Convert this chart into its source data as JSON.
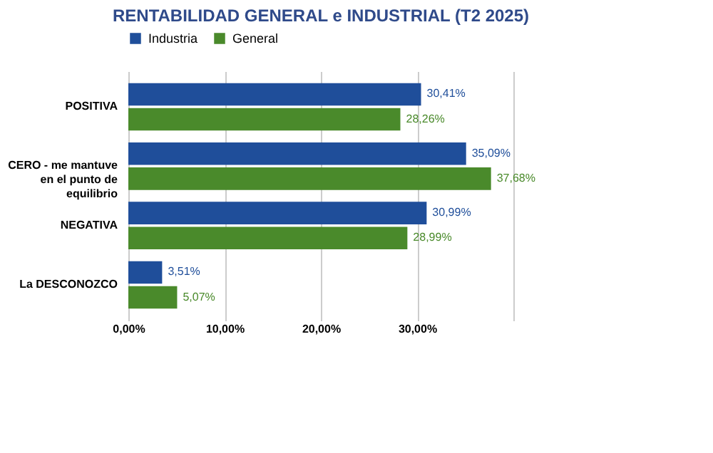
{
  "chart_data": {
    "type": "bar",
    "orientation": "horizontal",
    "title": "RENTABILIDAD GENERAL e INDUSTRIAL (T2 2025)",
    "categories": [
      "POSITIVA",
      "CERO - me mantuve en el punto de equilibrio",
      "NEGATIVA",
      "La DESCONOZCO"
    ],
    "series": [
      {
        "name": "Industria",
        "color": "#1f4e9a",
        "values": [
          30.41,
          35.09,
          30.99,
          3.51
        ],
        "value_labels": [
          "30,41%",
          "35,09%",
          "30,99%",
          "3,51%"
        ]
      },
      {
        "name": "General",
        "color": "#4a8a2b",
        "values": [
          28.26,
          37.68,
          28.99,
          5.07
        ],
        "value_labels": [
          "28,26%",
          "37,68%",
          "28,99%",
          "5,07%"
        ]
      }
    ],
    "xlim": [
      0,
      40
    ],
    "xticks": [
      {
        "value": 0,
        "label": "0,00%"
      },
      {
        "value": 10,
        "label": "10,00%"
      },
      {
        "value": 20,
        "label": "20,00%"
      },
      {
        "value": 30,
        "label": "30,00%"
      },
      {
        "value": 40,
        "label": null
      }
    ],
    "grid": "x",
    "legend": "top"
  }
}
